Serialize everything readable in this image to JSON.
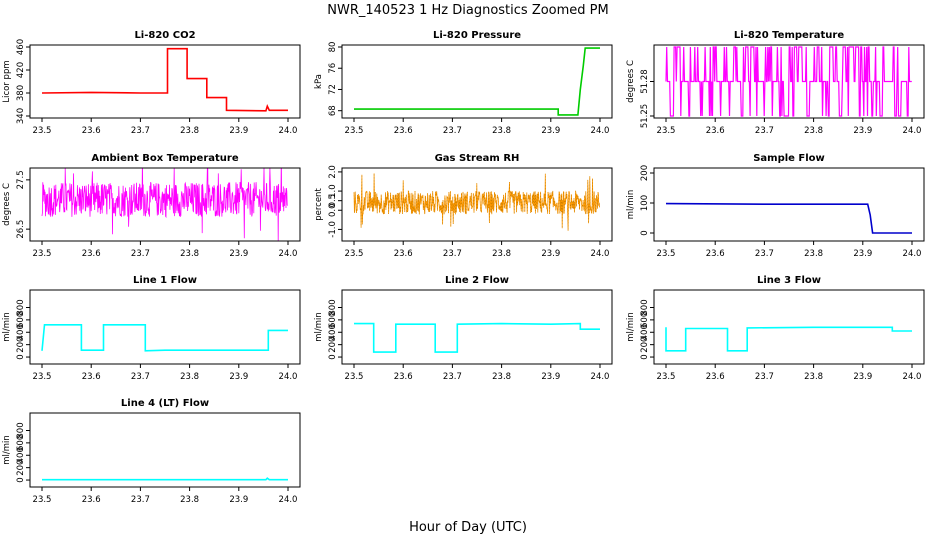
{
  "figure": {
    "title": "NWR_140523  1 Hz Diagnostics Zoomed PM",
    "xlabel": "Hour of Day (UTC)"
  },
  "chart_data": [
    {
      "type": "line",
      "title": "Li-820 CO2",
      "ylabel": "Licor ppm",
      "color": "#ff0000",
      "xlim": [
        23.5,
        24.0
      ],
      "ylim": [
        340,
        460
      ],
      "xticks": [
        23.5,
        23.6,
        23.7,
        23.8,
        23.9,
        24.0
      ],
      "yticks": [
        340,
        380,
        420,
        460
      ],
      "series": [
        {
          "x": [
            23.5,
            23.6,
            23.7,
            23.755,
            23.755,
            23.795,
            23.795,
            23.835,
            23.835,
            23.875,
            23.875,
            23.955,
            23.958,
            23.962,
            24.0
          ],
          "y": [
            380,
            381,
            380,
            380,
            457,
            457,
            405,
            405,
            372,
            372,
            350,
            349,
            357,
            350,
            350
          ]
        }
      ]
    },
    {
      "type": "line",
      "title": "Li-820 Pressure",
      "ylabel": "kPa",
      "color": "#00cc00",
      "xlim": [
        23.5,
        24.0
      ],
      "ylim": [
        67,
        80
      ],
      "xticks": [
        23.5,
        23.6,
        23.7,
        23.8,
        23.9,
        24.0
      ],
      "yticks": [
        68,
        72,
        76,
        80
      ],
      "series": [
        {
          "x": [
            23.5,
            23.7,
            23.9,
            23.915,
            23.915,
            23.955,
            23.96,
            23.966,
            23.97,
            24.0
          ],
          "y": [
            68.3,
            68.3,
            68.3,
            68.3,
            67.2,
            67.2,
            72,
            76.5,
            79.8,
            79.8
          ]
        }
      ]
    },
    {
      "type": "line",
      "title": "Li-820 Temperature",
      "ylabel": "degrees C",
      "color": "#ff00ff",
      "xlim": [
        23.5,
        24.0
      ],
      "ylim": [
        51.25,
        51.31
      ],
      "xticks": [
        23.5,
        23.6,
        23.7,
        23.8,
        23.9,
        24.0
      ],
      "yticks": [
        51.25,
        51.28
      ],
      "ytick_labels": [
        "51.25",
        "51.28"
      ],
      "levels": [
        51.25,
        51.28,
        51.31
      ],
      "pattern": "toggling between three quantized levels"
    },
    {
      "type": "line",
      "title": "Ambient Box Temperature",
      "ylabel": "degrees C",
      "color": "#ff00ff",
      "xlim": [
        23.5,
        24.0
      ],
      "ylim": [
        26.3,
        27.7
      ],
      "xticks": [
        23.5,
        23.6,
        23.7,
        23.8,
        23.9,
        24.0
      ],
      "yticks": [
        26.5,
        27.5
      ],
      "mean": 27.1,
      "noise_band": [
        26.7,
        27.45
      ],
      "pattern": "dense noise with downward spikes"
    },
    {
      "type": "line",
      "title": "Gas Stream RH",
      "ylabel": "percent",
      "color": "#ff9900",
      "xlim": [
        23.5,
        24.0
      ],
      "ylim": [
        -1.5,
        2.1
      ],
      "xticks": [
        23.5,
        23.6,
        23.7,
        23.8,
        23.9,
        24.0
      ],
      "yticks": [
        -1.0,
        0.0,
        0.5,
        1.0,
        2.0
      ],
      "ytick_labels": [
        "-1.0",
        "0.0",
        "0.5",
        "1.0",
        "2.0"
      ],
      "mean": 0.4,
      "noise_band": [
        -0.3,
        1.0
      ],
      "pattern": "dense noise with sparse spikes"
    },
    {
      "type": "line",
      "title": "Sample Flow",
      "ylabel": "ml/min",
      "color": "#0000cc",
      "xlim": [
        23.5,
        24.0
      ],
      "ylim": [
        -20,
        210
      ],
      "xticks": [
        23.5,
        23.6,
        23.7,
        23.8,
        23.9,
        24.0
      ],
      "yticks": [
        0,
        100,
        200
      ],
      "series": [
        {
          "x": [
            23.5,
            23.7,
            23.91,
            23.915,
            23.92,
            24.0
          ],
          "y": [
            98,
            96,
            96,
            60,
            0,
            0
          ]
        }
      ]
    },
    {
      "type": "line",
      "title": "Line 1 Flow",
      "ylabel": "ml/min",
      "color": "#00ffff",
      "xlim": [
        23.5,
        24.0
      ],
      "ylim": [
        -80,
        1050
      ],
      "xticks": [
        23.5,
        23.6,
        23.7,
        23.8,
        23.9,
        24.0
      ],
      "yticks": [
        0,
        200,
        400,
        600,
        800
      ],
      "series": [
        {
          "x": [
            23.5,
            23.505,
            23.58,
            23.58,
            23.625,
            23.625,
            23.71,
            23.71,
            23.75,
            23.96,
            23.96,
            24.0
          ],
          "y": [
            100,
            520,
            520,
            110,
            110,
            520,
            520,
            100,
            110,
            110,
            430,
            430
          ]
        }
      ]
    },
    {
      "type": "line",
      "title": "Line 2 Flow",
      "ylabel": "ml/min",
      "color": "#00ffff",
      "xlim": [
        23.5,
        24.0
      ],
      "ylim": [
        -80,
        1050
      ],
      "xticks": [
        23.5,
        23.6,
        23.7,
        23.8,
        23.9,
        24.0
      ],
      "yticks": [
        0,
        200,
        400,
        600,
        800
      ],
      "series": [
        {
          "x": [
            23.5,
            23.54,
            23.54,
            23.585,
            23.585,
            23.665,
            23.665,
            23.71,
            23.71,
            23.8,
            23.9,
            23.96,
            23.96,
            24.0
          ],
          "y": [
            540,
            540,
            80,
            80,
            530,
            530,
            80,
            80,
            530,
            540,
            530,
            540,
            450,
            450
          ]
        }
      ]
    },
    {
      "type": "line",
      "title": "Line 3 Flow",
      "ylabel": "ml/min",
      "color": "#00ffff",
      "xlim": [
        23.5,
        24.0
      ],
      "ylim": [
        -80,
        1050
      ],
      "xticks": [
        23.5,
        23.6,
        23.7,
        23.8,
        23.9,
        24.0
      ],
      "yticks": [
        0,
        200,
        400,
        600,
        800
      ],
      "series": [
        {
          "x": [
            23.5,
            23.5,
            23.54,
            23.54,
            23.625,
            23.625,
            23.665,
            23.665,
            23.8,
            23.96,
            23.96,
            24.0
          ],
          "y": [
            480,
            100,
            100,
            460,
            460,
            100,
            100,
            470,
            480,
            480,
            420,
            420
          ]
        }
      ]
    },
    {
      "type": "line",
      "title": "Line 4 (LT) Flow",
      "ylabel": "ml/min",
      "color": "#00ffff",
      "xlim": [
        23.5,
        24.0
      ],
      "ylim": [
        -80,
        1050
      ],
      "xticks": [
        23.5,
        23.6,
        23.7,
        23.8,
        23.9,
        24.0
      ],
      "yticks": [
        0,
        200,
        400,
        600,
        800
      ],
      "series": [
        {
          "x": [
            23.5,
            23.7,
            23.9,
            23.955,
            23.958,
            23.962,
            24.0
          ],
          "y": [
            5,
            5,
            5,
            5,
            30,
            5,
            5
          ]
        }
      ]
    }
  ]
}
